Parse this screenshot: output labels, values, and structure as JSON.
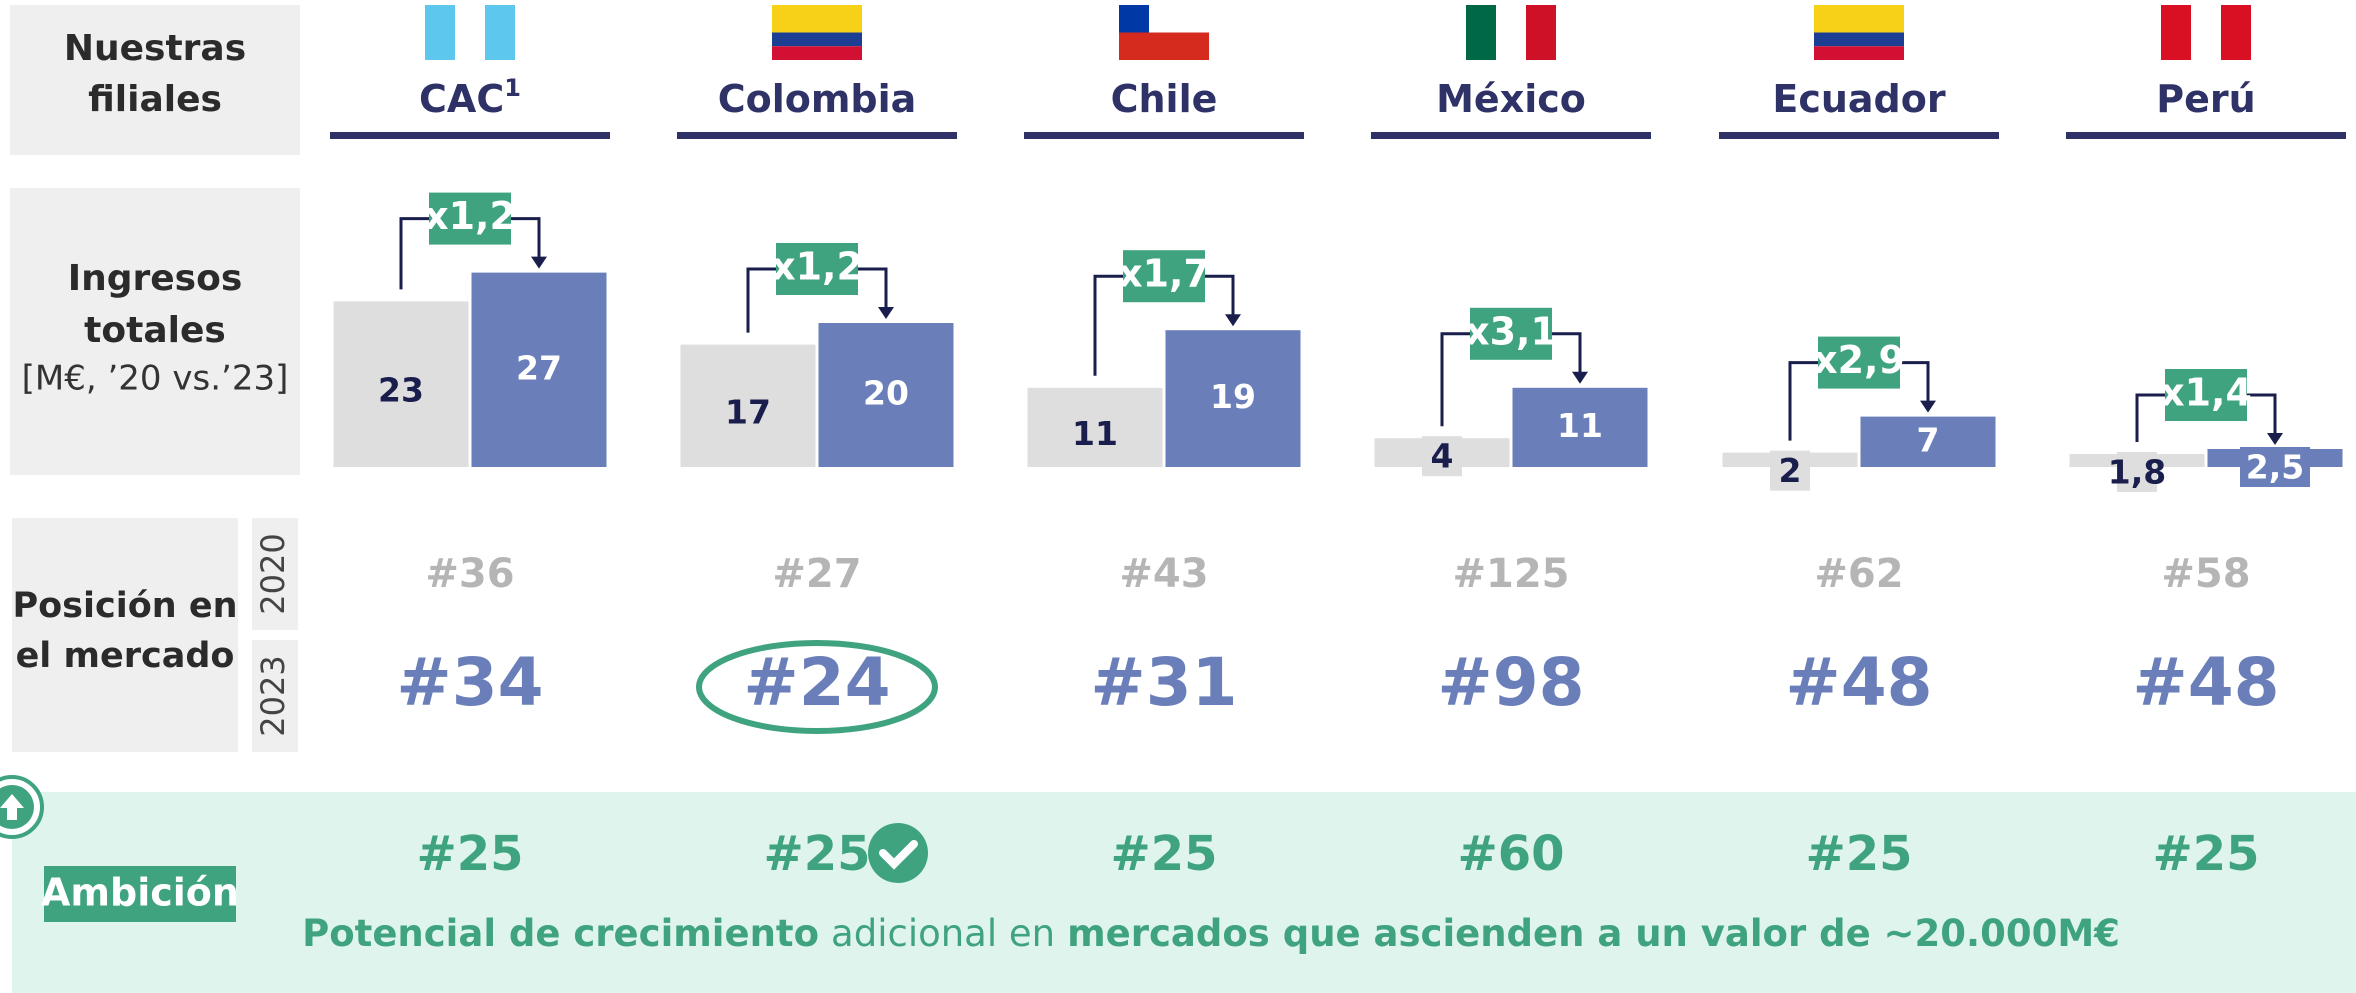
{
  "header": {
    "label_lines": [
      "Nuestras",
      "filiales"
    ]
  },
  "income_row": {
    "title_lines": [
      "Ingresos",
      "totales"
    ],
    "unit": "[M€, ’20 vs.’23]"
  },
  "position_row": {
    "title_lines": [
      "Posición en",
      "el mercado"
    ],
    "years": [
      "2020",
      "2023"
    ]
  },
  "ambition_row": {
    "label": "Ambición"
  },
  "countries": [
    {
      "name": "CAC",
      "note": "1",
      "values": [
        23,
        27
      ],
      "multiplier": "x1,2",
      "rank_2020": "#36",
      "rank_2023": "#34",
      "ambition": "#25"
    },
    {
      "name": "Colombia",
      "values": [
        17,
        20
      ],
      "multiplier": "x1,2",
      "rank_2020": "#27",
      "rank_2023": "#24",
      "ambition": "#25"
    },
    {
      "name": "Chile",
      "values": [
        11,
        19
      ],
      "multiplier": "x1,7",
      "rank_2020": "#43",
      "rank_2023": "#31",
      "ambition": "#25"
    },
    {
      "name": "México",
      "values": [
        4,
        11
      ],
      "multiplier": "x3,1",
      "rank_2020": "#125",
      "rank_2023": "#98",
      "ambition": "#60"
    },
    {
      "name": "Ecuador",
      "values": [
        2,
        7
      ],
      "multiplier": "x2,9",
      "rank_2020": "#62",
      "rank_2023": "#48",
      "ambition": "#25"
    },
    {
      "name": "Perú",
      "values": [
        1.8,
        2.5
      ],
      "value_labels": [
        "1,8",
        "2,5"
      ],
      "multiplier": "x1,4",
      "rank_2020": "#58",
      "rank_2023": "#48",
      "ambition": "#25"
    }
  ],
  "footer": [
    {
      "text": "Potencial de crecimiento",
      "bold": true
    },
    {
      "text": "adicional en",
      "bold": false
    },
    {
      "text": "mercados que ascienden a un valor de ~20.000M€",
      "bold": true
    }
  ]
}
